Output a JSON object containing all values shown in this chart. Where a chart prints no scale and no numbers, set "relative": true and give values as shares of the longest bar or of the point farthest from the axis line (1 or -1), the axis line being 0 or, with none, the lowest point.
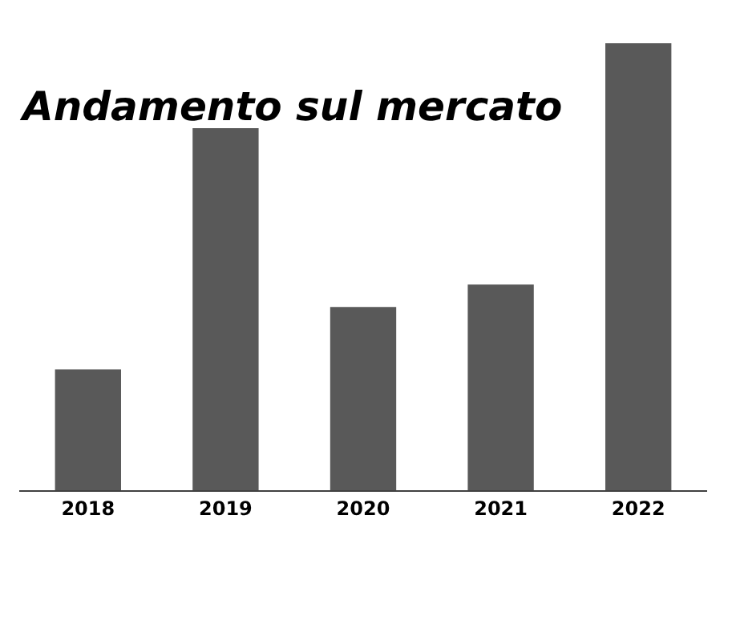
{
  "chart_data": {
    "type": "bar",
    "title": "Andamento sul mercato",
    "categories": [
      "2018",
      "2019",
      "2020",
      "2021",
      "2022"
    ],
    "values": [
      0.27,
      0.81,
      0.41,
      0.46,
      1.0
    ],
    "color": "#595959",
    "relative": true
  }
}
